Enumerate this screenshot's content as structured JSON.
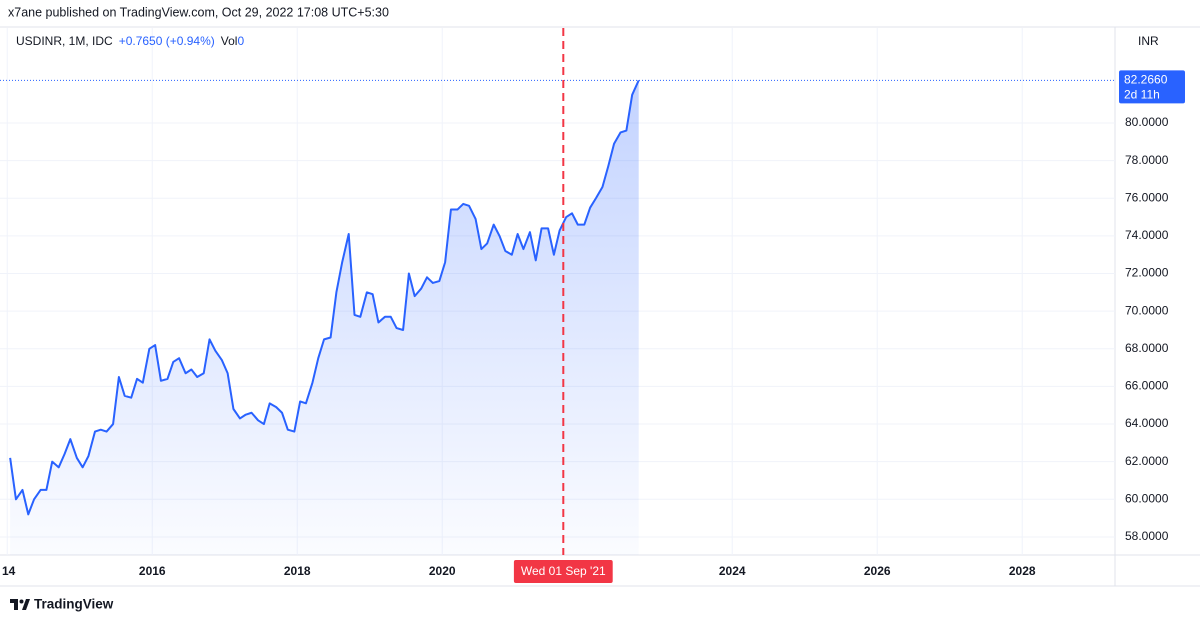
{
  "header": {
    "publisher": "x7ane published on TradingView.com, Oct 29, 2022 17:08 UTC+5:30"
  },
  "chart_data": {
    "type": "line",
    "symbol": "USDINR, 1M, IDC",
    "change": "+0.7650 (+0.94%)",
    "volume_label": "Vol",
    "volume": 0,
    "y_axis_label": "INR",
    "color": "#2962ff",
    "x": [
      2014.04,
      2014.12,
      2014.21,
      2014.29,
      2014.37,
      2014.46,
      2014.54,
      2014.62,
      2014.71,
      2014.79,
      2014.87,
      2014.96,
      2015.04,
      2015.12,
      2015.21,
      2015.29,
      2015.37,
      2015.46,
      2015.54,
      2015.62,
      2015.71,
      2015.79,
      2015.87,
      2015.96,
      2016.04,
      2016.12,
      2016.21,
      2016.29,
      2016.37,
      2016.46,
      2016.54,
      2016.62,
      2016.71,
      2016.79,
      2016.87,
      2016.96,
      2017.04,
      2017.12,
      2017.21,
      2017.29,
      2017.37,
      2017.46,
      2017.54,
      2017.62,
      2017.71,
      2017.79,
      2017.87,
      2017.96,
      2018.04,
      2018.12,
      2018.21,
      2018.29,
      2018.37,
      2018.46,
      2018.54,
      2018.62,
      2018.71,
      2018.79,
      2018.87,
      2018.96,
      2019.04,
      2019.12,
      2019.21,
      2019.29,
      2019.37,
      2019.46,
      2019.54,
      2019.62,
      2019.71,
      2019.79,
      2019.87,
      2019.96,
      2020.04,
      2020.12,
      2020.21,
      2020.29,
      2020.37,
      2020.46,
      2020.54,
      2020.62,
      2020.71,
      2020.79,
      2020.87,
      2020.96,
      2021.04,
      2021.12,
      2021.21,
      2021.29,
      2021.37,
      2021.46,
      2021.54,
      2021.62,
      2021.71,
      2021.79,
      2021.87,
      2021.96,
      2022.04,
      2022.12,
      2022.21,
      2022.29,
      2022.37,
      2022.46,
      2022.54,
      2022.62,
      2022.71
    ],
    "values": [
      62.2,
      60.0,
      60.5,
      59.2,
      60.0,
      60.5,
      60.5,
      62.0,
      61.7,
      62.4,
      63.2,
      62.2,
      61.7,
      62.3,
      63.6,
      63.7,
      63.6,
      64.0,
      66.5,
      65.5,
      65.4,
      66.4,
      66.2,
      68.0,
      68.2,
      66.3,
      66.4,
      67.3,
      67.5,
      66.7,
      66.9,
      66.5,
      66.7,
      68.5,
      67.9,
      67.4,
      66.7,
      64.8,
      64.3,
      64.5,
      64.6,
      64.2,
      64.0,
      65.1,
      64.9,
      64.6,
      63.7,
      63.6,
      65.2,
      65.1,
      66.2,
      67.5,
      68.5,
      68.6,
      71.0,
      72.6,
      74.1,
      69.8,
      69.7,
      71.0,
      70.9,
      69.4,
      69.7,
      69.7,
      69.1,
      69.0,
      72.0,
      70.8,
      71.2,
      71.8,
      71.5,
      71.6,
      72.6,
      75.4,
      75.4,
      75.7,
      75.6,
      74.9,
      73.3,
      73.6,
      74.6,
      74.0,
      73.2,
      73.0,
      74.1,
      73.3,
      74.2,
      72.7,
      74.4,
      74.4,
      73.0,
      74.3,
      75.0,
      75.2,
      74.6,
      74.6,
      75.5,
      76.0,
      76.6,
      77.7,
      78.9,
      79.5,
      79.6,
      81.5,
      82.266
    ],
    "xlim": [
      2013.9,
      2029.28
    ],
    "xticks": [
      {
        "value": 2014,
        "label": "14"
      },
      2016,
      2018,
      2020,
      2024,
      2026,
      2028
    ],
    "ylim": [
      57.04,
      85.05
    ],
    "yticks": [
      {
        "value": 58,
        "label": "58.0000"
      },
      {
        "value": 60,
        "label": "60.0000"
      },
      {
        "value": 62,
        "label": "62.0000"
      },
      {
        "value": 64,
        "label": "64.0000"
      },
      {
        "value": 66,
        "label": "66.0000"
      },
      {
        "value": 68,
        "label": "68.0000"
      },
      {
        "value": 70,
        "label": "70.0000"
      },
      {
        "value": 72,
        "label": "72.0000"
      },
      {
        "value": 74,
        "label": "74.0000"
      },
      {
        "value": 76,
        "label": "76.0000"
      },
      {
        "value": 78,
        "label": "78.0000"
      },
      {
        "value": 80,
        "label": "80.0000"
      }
    ],
    "last_price": {
      "value": 82.266,
      "label": "82.2660"
    },
    "countdown": "2d 11h",
    "crosshair": {
      "value": 2021.67,
      "label": "Wed 01 Sep '21",
      "color": "#f23645"
    },
    "grid": true
  },
  "footer": {
    "brand": "TradingView"
  }
}
